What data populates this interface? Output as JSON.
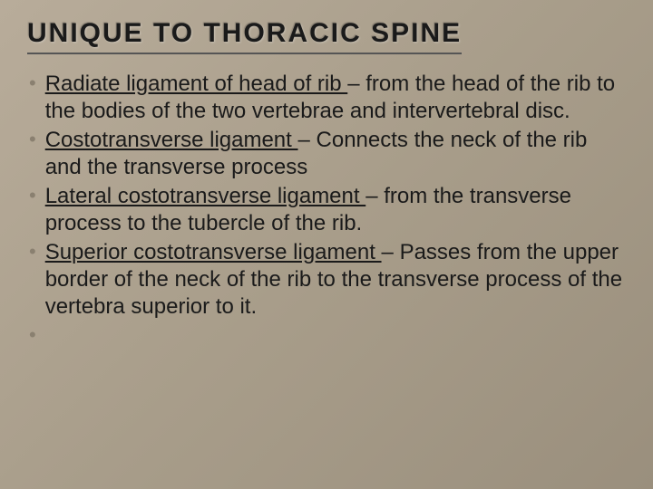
{
  "title": "UNIQUE TO THORACIC SPINE",
  "bullets": [
    {
      "term": "Radiate ligament of head of rib ",
      "desc": "– from the head of the rib to the bodies of the two vertebrae and intervertebral disc."
    },
    {
      "term": "Costotransverse ligament ",
      "desc": "– Connects the neck of the rib and the transverse process"
    },
    {
      "term": "Lateral costotransverse ligament ",
      "desc": "– from the transverse process to the tubercle of the rib."
    },
    {
      "term": "Superior costotransverse ligament ",
      "desc": "– Passes from the upper border of the neck of the rib to the transverse process of the vertebra superior to it."
    },
    {
      "term": "",
      "desc": ""
    }
  ],
  "styling": {
    "background_gradient": [
      "#b8ac9a",
      "#a89d8a",
      "#9a8f7d"
    ],
    "title_color": "#1a1a1a",
    "title_fontsize": 30,
    "title_letterspacing": 2,
    "title_underline_color": "#555",
    "body_color": "#1a1a1a",
    "body_fontsize": 24,
    "bullet_marker_color": "#8a8070",
    "font_family": "Arial"
  }
}
